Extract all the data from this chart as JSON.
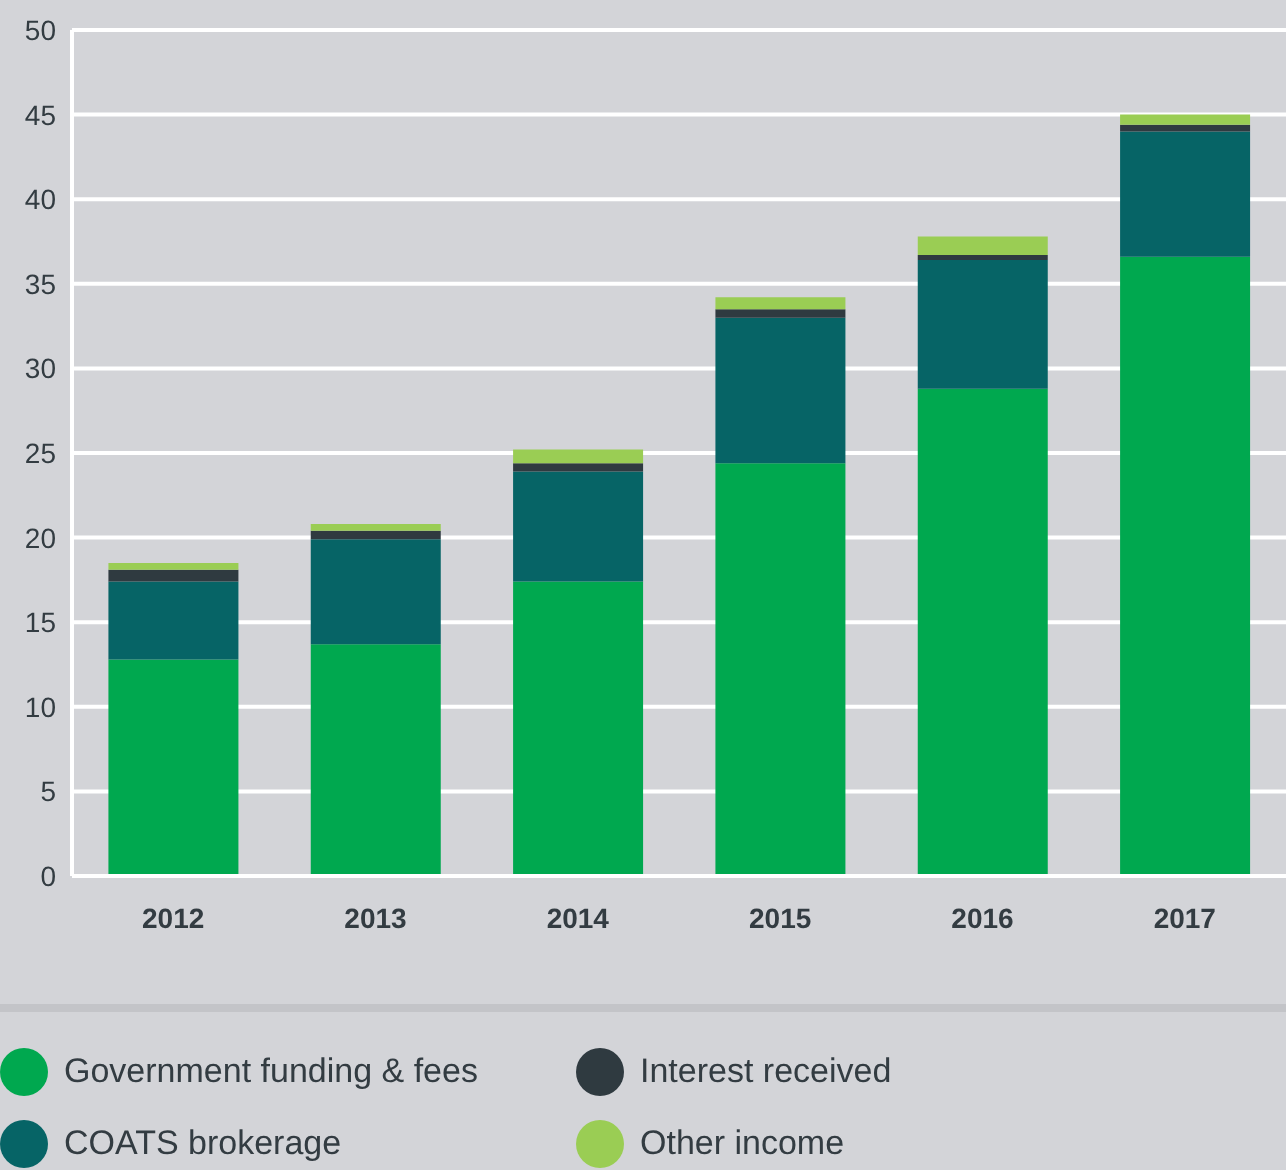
{
  "chart_data": {
    "type": "bar",
    "stacked": true,
    "categories": [
      "2012",
      "2013",
      "2014",
      "2015",
      "2016",
      "2017"
    ],
    "series": [
      {
        "name": "Government funding & fees",
        "color": "#00a84f",
        "values": [
          12.8,
          13.7,
          17.4,
          24.4,
          28.8,
          36.6
        ]
      },
      {
        "name": "COATS brokerage",
        "color": "#066466",
        "values": [
          4.6,
          6.2,
          6.5,
          8.6,
          7.6,
          7.4
        ]
      },
      {
        "name": "Interest received",
        "color": "#2f3a40",
        "values": [
          0.7,
          0.5,
          0.5,
          0.5,
          0.3,
          0.4
        ]
      },
      {
        "name": "Other income",
        "color": "#9acd54",
        "values": [
          0.4,
          0.4,
          0.8,
          0.7,
          1.1,
          0.6
        ]
      }
    ],
    "ylim": [
      0,
      50
    ],
    "yticks": [
      0,
      5,
      10,
      15,
      20,
      25,
      30,
      35,
      40,
      45,
      50
    ],
    "grid": "y",
    "legend": "bottom"
  }
}
